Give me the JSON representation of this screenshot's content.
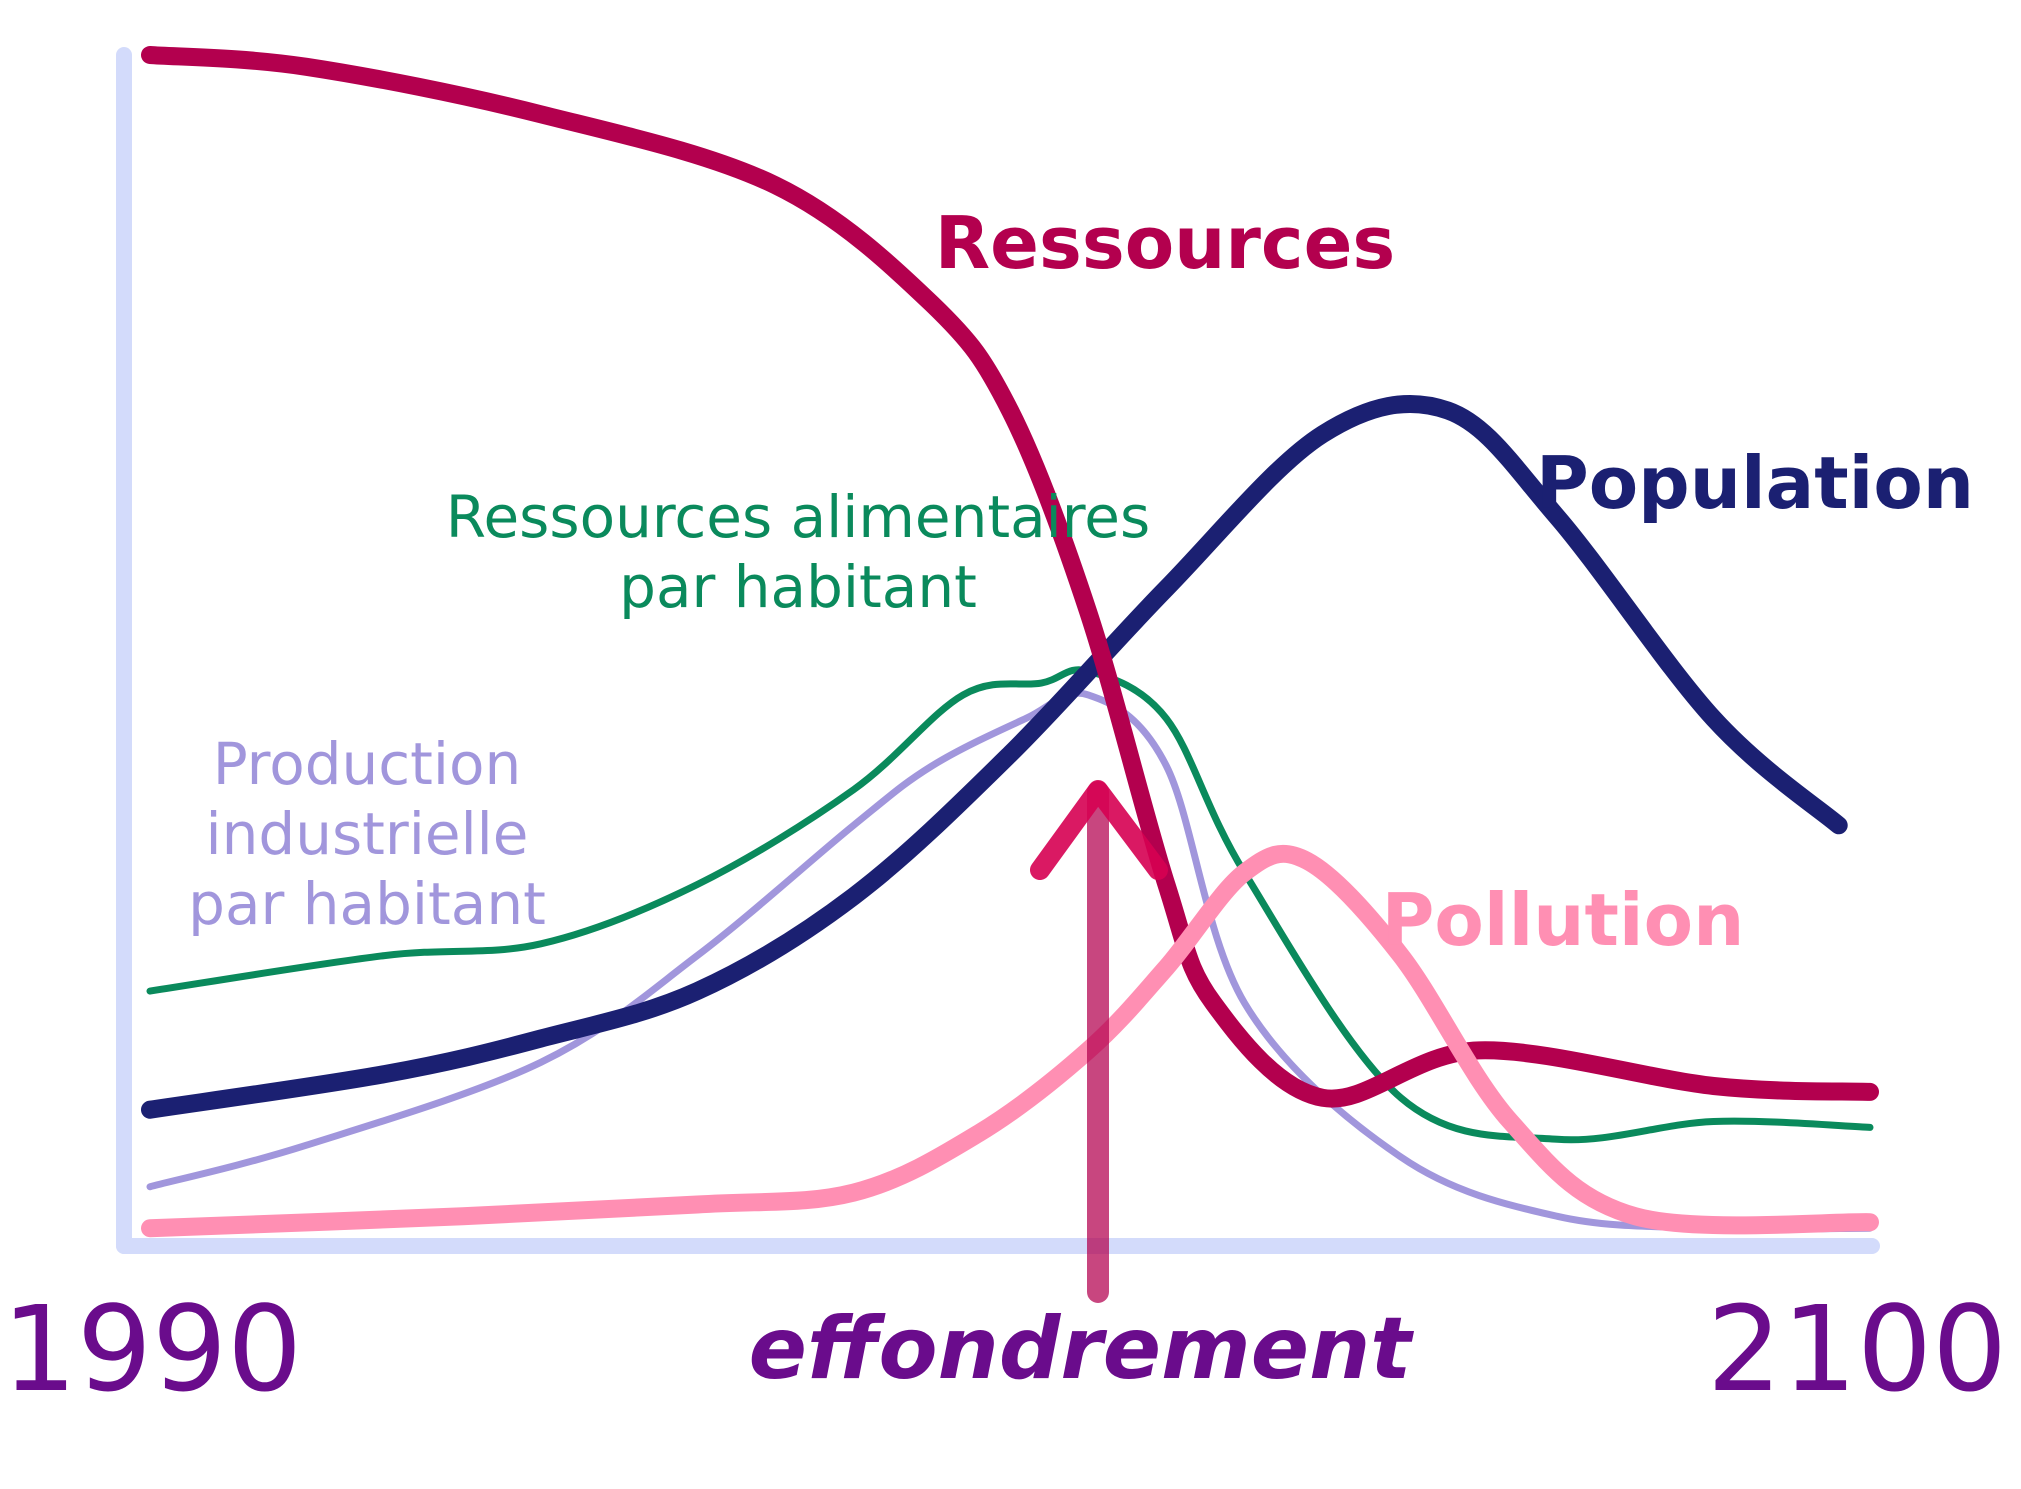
{
  "chart_data": {
    "type": "line",
    "title": "",
    "xlabel": "",
    "ylabel": "",
    "x_range_labels": [
      "1990",
      "2100"
    ],
    "xlim": [
      1990,
      2100
    ],
    "ylim": [
      0,
      100
    ],
    "grid": false,
    "annotation": {
      "text": "effondrement",
      "x": 2052,
      "color": "#6a0c8c"
    },
    "series": [
      {
        "name": "Ressources",
        "color": "#b3004e",
        "stroke_weight": "thick",
        "x": [
          1990,
          2000,
          2015,
          2030,
          2040,
          2045,
          2050,
          2055,
          2058,
          2065,
          2075,
          2090,
          2100
        ],
        "y": [
          100,
          99,
          95,
          89,
          79,
          70,
          53,
          30,
          20,
          12,
          16,
          13,
          12.5
        ]
      },
      {
        "name": "Population",
        "color": "#1b2072",
        "stroke_weight": "thick",
        "x": [
          1990,
          2005,
          2015,
          2025,
          2035,
          2045,
          2055,
          2065,
          2073,
          2080,
          2090,
          2098
        ],
        "y": [
          11,
          14,
          17,
          21,
          29,
          41,
          55,
          68,
          70,
          61,
          44,
          35
        ]
      },
      {
        "name": "Ressources alimentaires\npar habitant",
        "color": "#0a8a5c",
        "stroke_weight": "thin",
        "x": [
          1990,
          2005,
          2015,
          2025,
          2035,
          2042,
          2047,
          2050,
          2055,
          2060,
          2070,
          2080,
          2090,
          2100
        ],
        "y": [
          21,
          24,
          25,
          30,
          38,
          46,
          47,
          48,
          44,
          31,
          12,
          8.5,
          10,
          9.5
        ]
      },
      {
        "name": "Production\nindustrielle\npar habitant",
        "color": "#a196dc",
        "stroke_weight": "thin",
        "x": [
          1990,
          2000,
          2015,
          2025,
          2035,
          2040,
          2046,
          2050,
          2055,
          2060,
          2070,
          2080,
          2090,
          2100
        ],
        "y": [
          4.5,
          8,
          15,
          24,
          35,
          40,
          44,
          46,
          40,
          20,
          7,
          2,
          1,
          1
        ]
      },
      {
        "name": "Pollution",
        "color": "#ff8fb3",
        "stroke_weight": "thick",
        "x": [
          1990,
          2010,
          2025,
          2035,
          2043,
          2050,
          2055,
          2060,
          2064,
          2070,
          2077,
          2085,
          2100
        ],
        "y": [
          1,
          2,
          3,
          4,
          9,
          16,
          23,
          31,
          32,
          24,
          10,
          2,
          1.5
        ]
      }
    ]
  }
}
